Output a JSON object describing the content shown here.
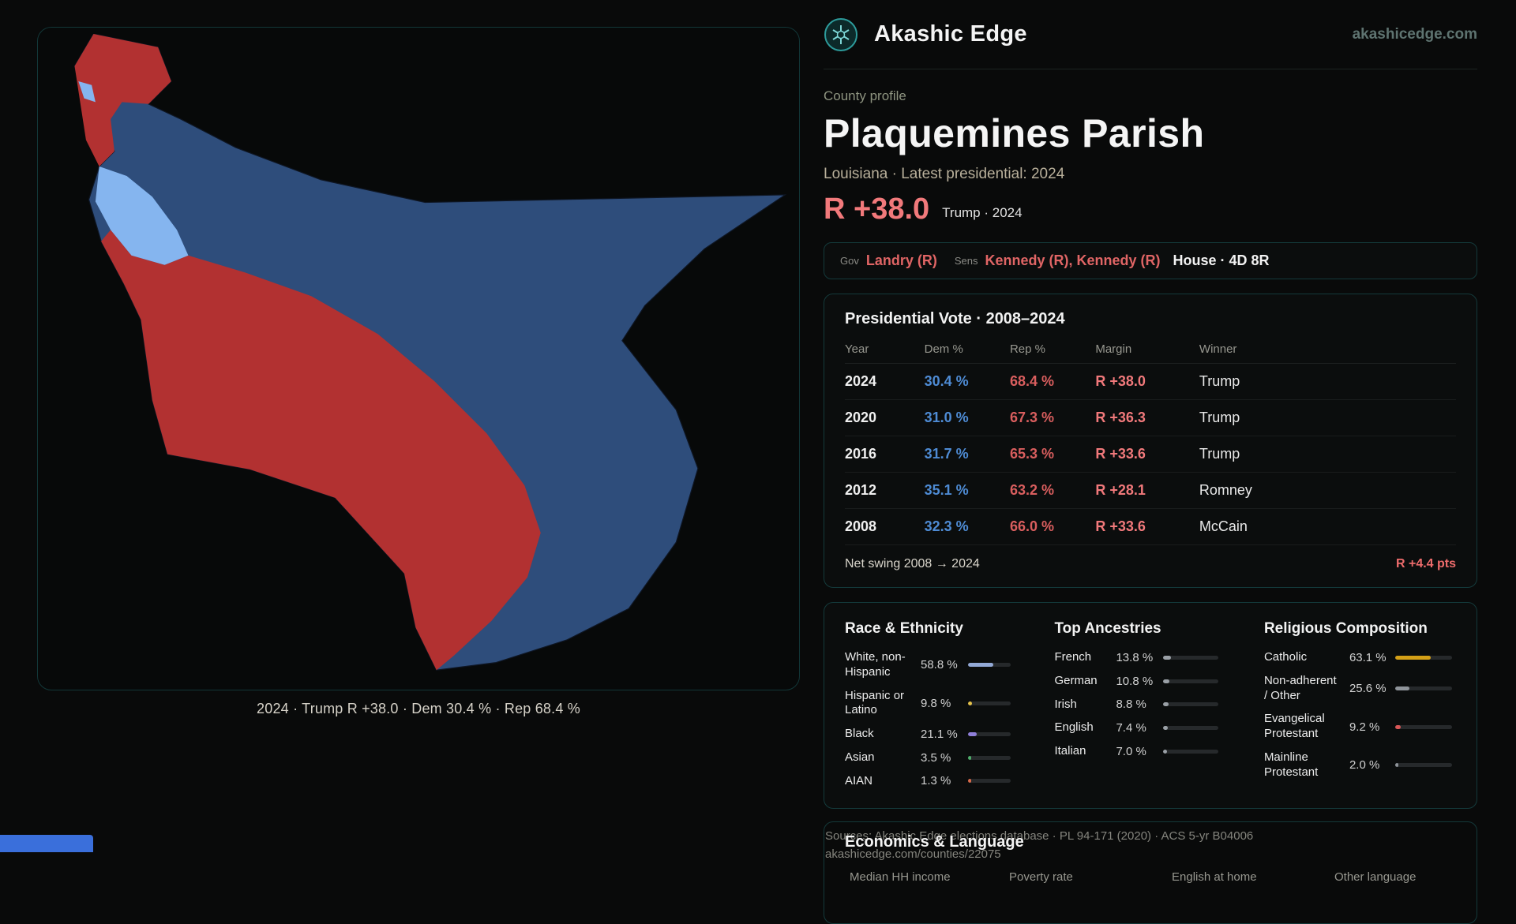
{
  "brand": {
    "name": "Akashic Edge",
    "domain": "akashicedge.com"
  },
  "profile": {
    "kicker": "County profile",
    "title": "Plaquemines Parish",
    "subtitle": "Louisiana · Latest presidential: 2024",
    "headline_margin": "R +38.0",
    "headline_context": "Trump · 2024"
  },
  "officials": {
    "gov_label": "Gov",
    "gov": "Landry (R)",
    "sens_label": "Sens",
    "sens": "Kennedy (R), Kennedy (R)",
    "house": "House · 4D 8R"
  },
  "presidential": {
    "title": "Presidential Vote · 2008–2024",
    "columns": [
      "Year",
      "Dem %",
      "Rep %",
      "Margin",
      "Winner"
    ],
    "rows": [
      {
        "year": "2024",
        "dem": "30.4 %",
        "rep": "68.4 %",
        "margin": "R +38.0",
        "winner": "Trump"
      },
      {
        "year": "2020",
        "dem": "31.0 %",
        "rep": "67.3 %",
        "margin": "R +36.3",
        "winner": "Trump"
      },
      {
        "year": "2016",
        "dem": "31.7 %",
        "rep": "65.3 %",
        "margin": "R +33.6",
        "winner": "Trump"
      },
      {
        "year": "2012",
        "dem": "35.1 %",
        "rep": "63.2 %",
        "margin": "R +28.1",
        "winner": "Romney"
      },
      {
        "year": "2008",
        "dem": "32.3 %",
        "rep": "66.0 %",
        "margin": "R +33.6",
        "winner": "McCain"
      }
    ],
    "net_swing_label": "Net swing 2008 → 2024",
    "net_swing_value": "R +4.4 pts"
  },
  "demographics": {
    "race": {
      "title": "Race & Ethnicity",
      "rows": [
        {
          "label": "White, non-Hispanic",
          "value": "58.8 %",
          "pct": 58.8,
          "color": "#93a9d6"
        },
        {
          "label": "Hispanic or Latino",
          "value": "9.8 %",
          "pct": 9.8,
          "color": "#e5c24a"
        },
        {
          "label": "Black",
          "value": "21.1 %",
          "pct": 21.1,
          "color": "#8f7fd9"
        },
        {
          "label": "Asian",
          "value": "3.5 %",
          "pct": 3.5,
          "color": "#4fae6b"
        },
        {
          "label": "AIAN",
          "value": "1.3 %",
          "pct": 1.3,
          "color": "#d96a4a"
        }
      ]
    },
    "ancestries": {
      "title": "Top Ancestries",
      "rows": [
        {
          "label": "French",
          "value": "13.8 %",
          "pct": 13.8,
          "color": "#9aa0a6"
        },
        {
          "label": "German",
          "value": "10.8 %",
          "pct": 10.8,
          "color": "#9aa0a6"
        },
        {
          "label": "Irish",
          "value": "8.8 %",
          "pct": 8.8,
          "color": "#9aa0a6"
        },
        {
          "label": "English",
          "value": "7.4 %",
          "pct": 7.4,
          "color": "#9aa0a6"
        },
        {
          "label": "Italian",
          "value": "7.0 %",
          "pct": 7.0,
          "color": "#9aa0a6"
        }
      ]
    },
    "religion": {
      "title": "Religious Composition",
      "rows": [
        {
          "label": "Catholic",
          "value": "63.1 %",
          "pct": 63.1,
          "color": "#d4a017"
        },
        {
          "label": "Non-adherent / Other",
          "value": "25.6 %",
          "pct": 25.6,
          "color": "#8f949a"
        },
        {
          "label": "Evangelical Protestant",
          "value": "9.2 %",
          "pct": 9.2,
          "color": "#d95757"
        },
        {
          "label": "Mainline Protestant",
          "value": "2.0 %",
          "pct": 2.0,
          "color": "#8f949a"
        }
      ]
    }
  },
  "map": {
    "caption": "2024 · Trump R +38.0 · Dem 30.4 % · Rep 68.4 %",
    "colors": {
      "rep": "#b23131",
      "dem": "#2e4d7b",
      "light": "#85b5ef"
    }
  },
  "sources": {
    "line1": "Sources: Akashic Edge elections database · PL 94-171 (2020) · ACS 5-yr B04006",
    "line2": "akashicedge.com/counties/22075"
  },
  "economics": {
    "title": "Economics & Language",
    "columns": [
      "Median HH income",
      "Poverty rate",
      "English at home",
      "Other language"
    ]
  }
}
